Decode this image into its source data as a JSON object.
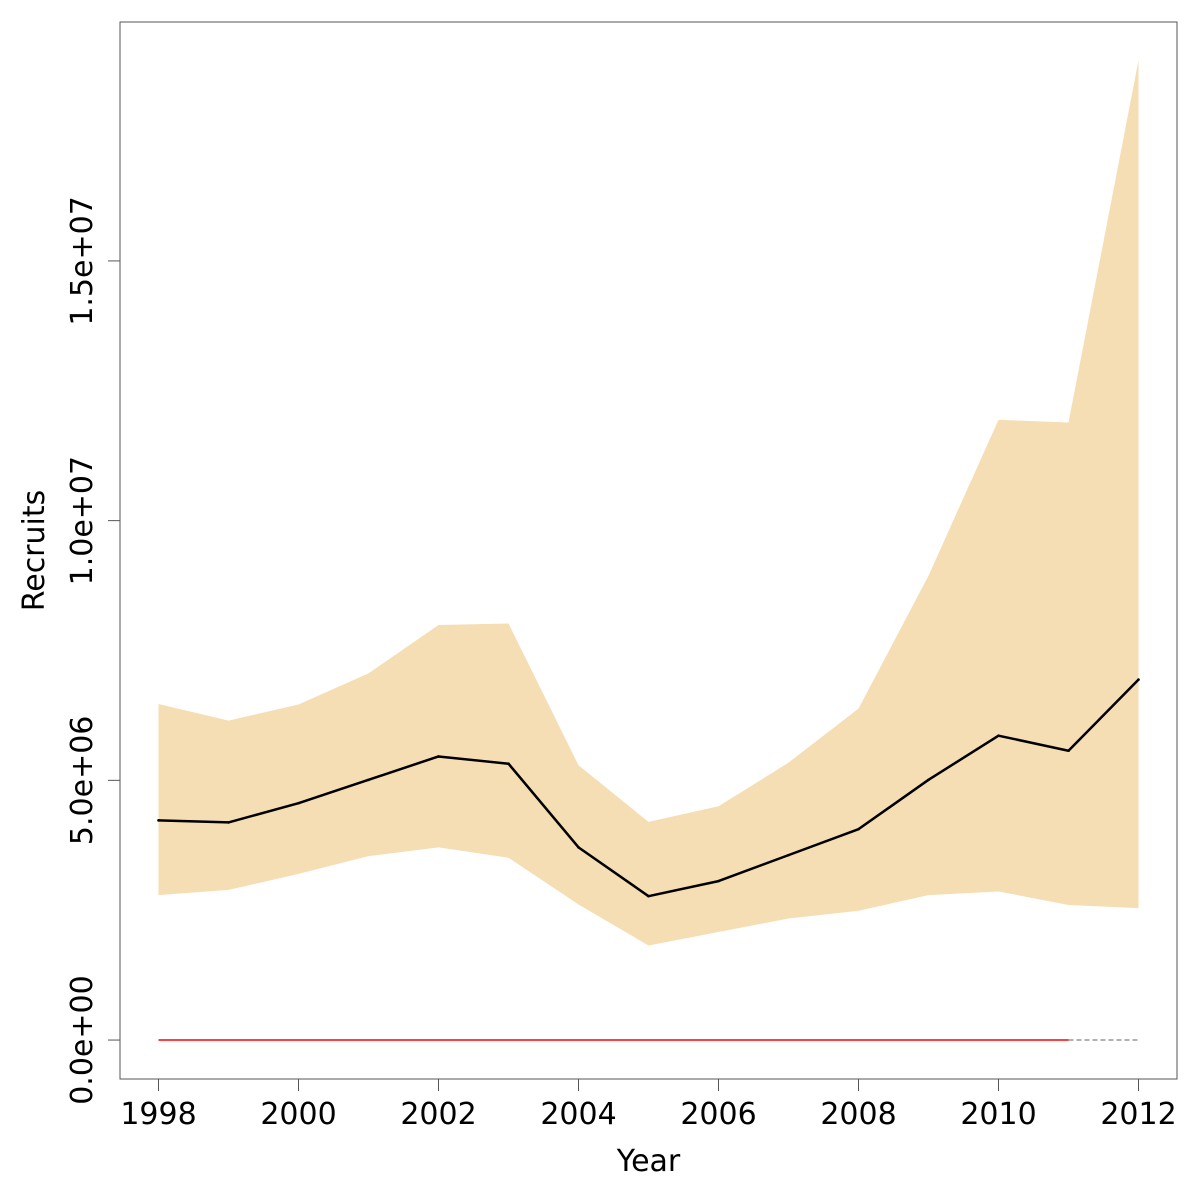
{
  "chart_data": {
    "type": "line",
    "title": "",
    "xlabel": "Year",
    "ylabel": "Recruits",
    "xlim": [
      1997.45,
      2012.55
    ],
    "ylim": [
      -750000,
      19600000
    ],
    "x_ticks": [
      1998,
      2000,
      2002,
      2004,
      2006,
      2008,
      2010,
      2012
    ],
    "y_ticks": [
      0,
      5000000,
      10000000,
      15000000
    ],
    "y_tick_labels": [
      "0.0e+00",
      "5.0e+06",
      "1.0e+07",
      "1.5e+07"
    ],
    "grid": false,
    "legend": "none",
    "x": [
      1998,
      1999,
      2000,
      2001,
      2002,
      2003,
      2004,
      2005,
      2006,
      2007,
      2008,
      2009,
      2010,
      2011,
      2012
    ],
    "series": [
      {
        "values": [
          4230000,
          4190000,
          4560000,
          5010000,
          5460000,
          5320000,
          3710000,
          2770000,
          3060000,
          3560000,
          4060000,
          5010000,
          5860000,
          5570000,
          6940000
        ]
      }
    ],
    "band": {
      "lower": [
        2790000,
        2890000,
        3200000,
        3540000,
        3710000,
        3510000,
        2610000,
        1820000,
        2080000,
        2340000,
        2490000,
        2790000,
        2860000,
        2600000,
        2540000
      ],
      "upper": [
        6470000,
        6150000,
        6460000,
        7060000,
        7990000,
        8020000,
        5290000,
        4200000,
        4500000,
        5340000,
        6380000,
        8940000,
        11940000,
        11890000,
        18860000
      ]
    },
    "reference_lines": [
      {
        "y": 0,
        "x_range": [
          1998,
          2011
        ],
        "color": "#ff0000"
      },
      {
        "y": 0,
        "x_range": [
          2011,
          2012
        ],
        "color": "#999999",
        "dashed": true
      }
    ],
    "colors": {
      "band": "#f5deb3",
      "line": "#000000",
      "reference": "#ff0000",
      "reference_tail": "#999999"
    }
  }
}
